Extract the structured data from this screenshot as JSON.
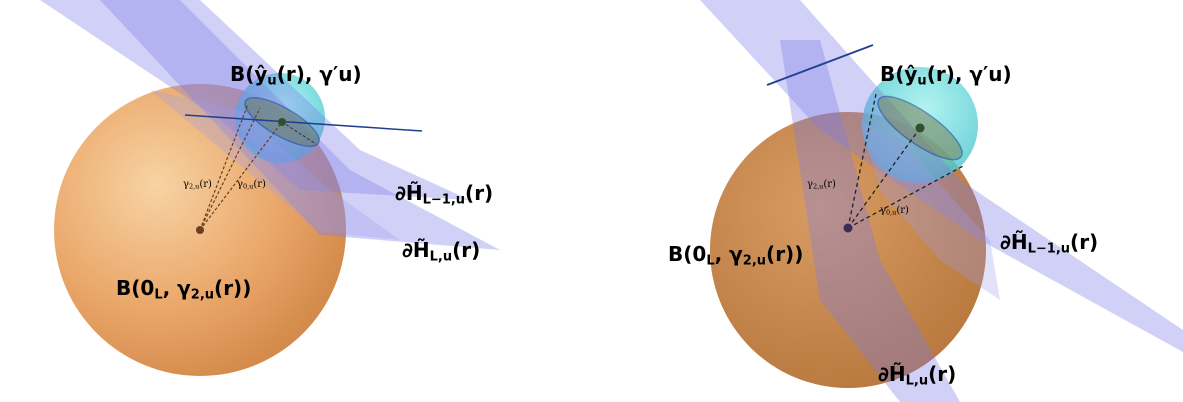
{
  "left_panel": {
    "label_ball_small": "B(ŷ",
    "label_ball_small_sub": "u",
    "label_ball_small_rest": "(r), γ′u)",
    "label_ball_big": "B(0",
    "label_ball_big_sub": "L",
    "label_ball_big_rest": ", γ",
    "label_ball_big_sub2": "2,u",
    "label_ball_big_end": "(r))",
    "label_h_prev": "∂H̃",
    "label_h_prev_sub": "L−1,u",
    "label_h_prev_end": "(r)",
    "label_h_cur": "∂H̃",
    "label_h_cur_sub": "L,u",
    "label_h_cur_end": "(r)",
    "gamma2": "γ",
    "gamma2_sub": "2,u",
    "gamma2_end": "(r)",
    "gamma0": "γ",
    "gamma0_sub": "0,u",
    "gamma0_end": "(r)"
  },
  "right_panel": {
    "label_ball_small": "B(ŷ",
    "label_ball_small_sub": "u",
    "label_ball_small_rest": "(r), γ′u)",
    "label_ball_big": "B(0",
    "label_ball_big_sub": "L",
    "label_ball_big_rest": ", γ",
    "label_ball_big_sub2": "2,u",
    "label_ball_big_end": "(r))",
    "label_h_prev": "∂H̃",
    "label_h_prev_sub": "L−1,u",
    "label_h_prev_end": "(r)",
    "label_h_cur": "∂H̃",
    "label_h_cur_sub": "L,u",
    "label_h_cur_end": "(r)",
    "gamma2": "γ",
    "gamma2_sub": "2,u",
    "gamma2_end": "(r)",
    "gamma0": "γ",
    "gamma0_sub": "0,u",
    "gamma0_end": "(r)"
  },
  "colors": {
    "big_ball_left": "#e8a566",
    "big_ball_right": "#c98a4e",
    "small_ball": "#5fd6d8",
    "plane": "#8888ee",
    "line": "#1f3f8f"
  }
}
